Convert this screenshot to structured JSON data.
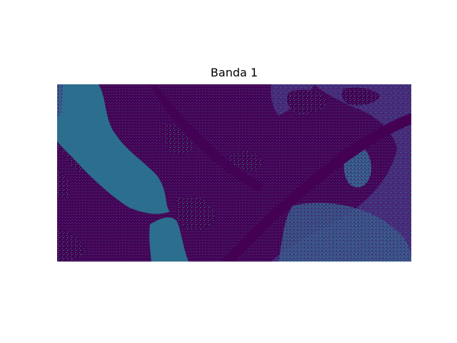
{
  "figure": {
    "title": "Banda 1"
  },
  "raster": {
    "colormap": "viridis",
    "palette": {
      "dark_purple": "#440154",
      "indigo": "#472c7a",
      "slate_blue": "#3b528b",
      "water_blue": "#2c6e8e",
      "teal": "#21918c",
      "bright_teal": "#28ae80"
    }
  }
}
